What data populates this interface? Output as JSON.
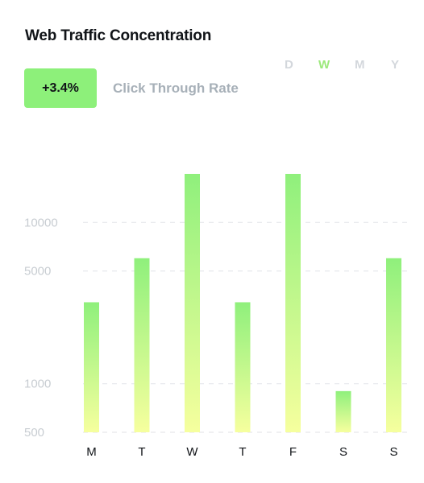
{
  "card": {
    "title": "Web Traffic Concentration",
    "periods": [
      "D",
      "W",
      "M",
      "Y"
    ],
    "active_period": "W",
    "change_badge": "+3.4%",
    "metric_label": "Click Through Rate"
  },
  "colors": {
    "accent": "#8df07a",
    "bar_top": "#8ff07c",
    "bar_bottom": "#f6ff9e",
    "grid": "#e6e8eb",
    "axis_text": "#c8cdd2"
  },
  "chart_data": {
    "type": "bar",
    "title": "Web Traffic Concentration",
    "categories": [
      "M",
      "T",
      "W",
      "T",
      "F",
      "S",
      "S"
    ],
    "series": [
      {
        "values": [
          3200,
          6000,
          20000,
          3200,
          20000,
          900,
          6000
        ]
      }
    ],
    "y_ticks": [
      500,
      1000,
      5000,
      10000
    ],
    "y_scale": "log",
    "ylim": [
      500,
      20000
    ],
    "grid": true,
    "gridline_style": "dashed"
  }
}
